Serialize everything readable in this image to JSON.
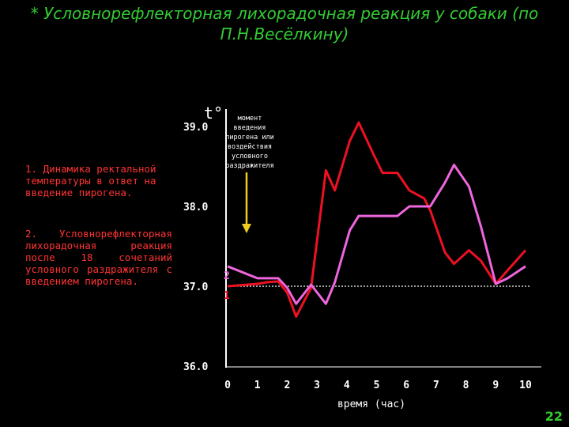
{
  "title": "* Условнорефлекторная лихорадочная реакция у собаки (по П.Н.Весёлкину)",
  "notes": {
    "line1": "1. Динамика ректальной температуры в ответ на введение пирогена.",
    "line2": "2. Условнорефлекторная лихорадочная реакция после 18 сочетаний условного раздражителя с введением пирогена."
  },
  "annotation": "момент введения пирогена или воздействия условного раздражителя",
  "page_number": "22",
  "colors": {
    "background": "#000000",
    "title": "#33cc33",
    "notes": "#ff3333",
    "axes": "#ffffff",
    "series1": "#ee1122",
    "series2": "#ee66dd",
    "arrow": "#eecc22"
  },
  "chart_data": {
    "type": "line",
    "ylabel": "t°",
    "xlabel": "время (час)",
    "ylim": [
      36.0,
      39.0
    ],
    "xlim": [
      0,
      10
    ],
    "yticks": [
      "36.0",
      "37.0",
      "38.0",
      "39.0"
    ],
    "xticks": [
      "0",
      "1",
      "2",
      "3",
      "4",
      "5",
      "6",
      "7",
      "8",
      "9",
      "10"
    ],
    "baseline": 37.0,
    "series": [
      {
        "name": "1",
        "x": [
          0,
          1,
          1.3,
          1.7,
          2,
          2.3,
          2.8,
          3.3,
          3.6,
          4.1,
          4.4,
          4.9,
          5.2,
          5.7,
          6.1,
          6.6,
          6.8,
          7.3,
          7.6,
          8.1,
          8.5,
          9,
          9.4,
          10
        ],
        "y": [
          37.0,
          37.03,
          37.05,
          37.06,
          36.92,
          36.62,
          36.98,
          38.45,
          38.2,
          38.82,
          39.05,
          38.65,
          38.42,
          38.42,
          38.2,
          38.1,
          37.95,
          37.42,
          37.28,
          37.45,
          37.32,
          37.03,
          37.2,
          37.45
        ]
      },
      {
        "name": "2",
        "x": [
          0,
          1,
          1.3,
          1.7,
          2,
          2.3,
          2.8,
          3.3,
          3.6,
          4.1,
          4.4,
          4.9,
          5.2,
          5.7,
          6.1,
          6.6,
          6.8,
          7.3,
          7.6,
          8.1,
          8.5,
          9,
          9.4,
          10
        ],
        "y": [
          37.25,
          37.1,
          37.1,
          37.1,
          36.98,
          36.78,
          37.02,
          36.78,
          37.05,
          37.7,
          37.88,
          37.88,
          37.88,
          37.88,
          38.0,
          38.0,
          38.0,
          38.3,
          38.52,
          38.25,
          37.75,
          37.03,
          37.1,
          37.25
        ]
      }
    ]
  }
}
